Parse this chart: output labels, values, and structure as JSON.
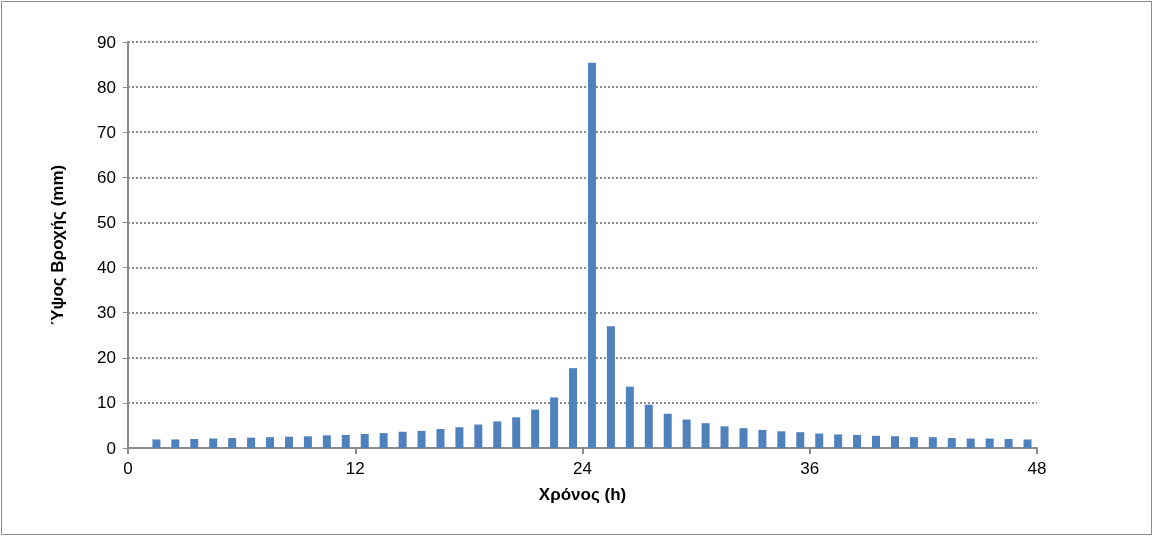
{
  "chart_data": {
    "type": "bar",
    "xlabel": "Χρόνος (h)",
    "ylabel": "Ύψος Βροχής (mm)",
    "x": [
      1.5,
      2.5,
      3.5,
      4.5,
      5.5,
      6.5,
      7.5,
      8.5,
      9.5,
      10.5,
      11.5,
      12.5,
      13.5,
      14.5,
      15.5,
      16.5,
      17.5,
      18.5,
      19.5,
      20.5,
      21.5,
      22.5,
      23.5,
      24.5,
      25.5,
      26.5,
      27.5,
      28.5,
      29.5,
      30.5,
      31.5,
      32.5,
      33.5,
      34.5,
      35.5,
      36.5,
      37.5,
      38.5,
      39.5,
      40.5,
      41.5,
      42.5,
      43.5,
      44.5,
      45.5,
      46.5,
      47.5
    ],
    "values": [
      1.9,
      1.9,
      2.0,
      2.1,
      2.2,
      2.3,
      2.4,
      2.5,
      2.6,
      2.8,
      2.9,
      3.1,
      3.3,
      3.6,
      3.8,
      4.2,
      4.6,
      5.2,
      5.9,
      6.8,
      8.5,
      11.2,
      17.7,
      85.4,
      27.0,
      13.6,
      9.6,
      7.6,
      6.3,
      5.5,
      4.8,
      4.4,
      4.0,
      3.7,
      3.5,
      3.2,
      3.0,
      2.9,
      2.7,
      2.6,
      2.4,
      2.4,
      2.2,
      2.1,
      2.1,
      2.0,
      1.9
    ],
    "color": "#4f81bd",
    "xlim": [
      0,
      48
    ],
    "xticks": [
      0,
      12,
      24,
      36,
      48
    ],
    "ylim": [
      0,
      90
    ],
    "yticks": [
      0,
      10,
      20,
      30,
      40,
      50,
      60,
      70,
      80,
      90
    ],
    "grid": "y"
  }
}
